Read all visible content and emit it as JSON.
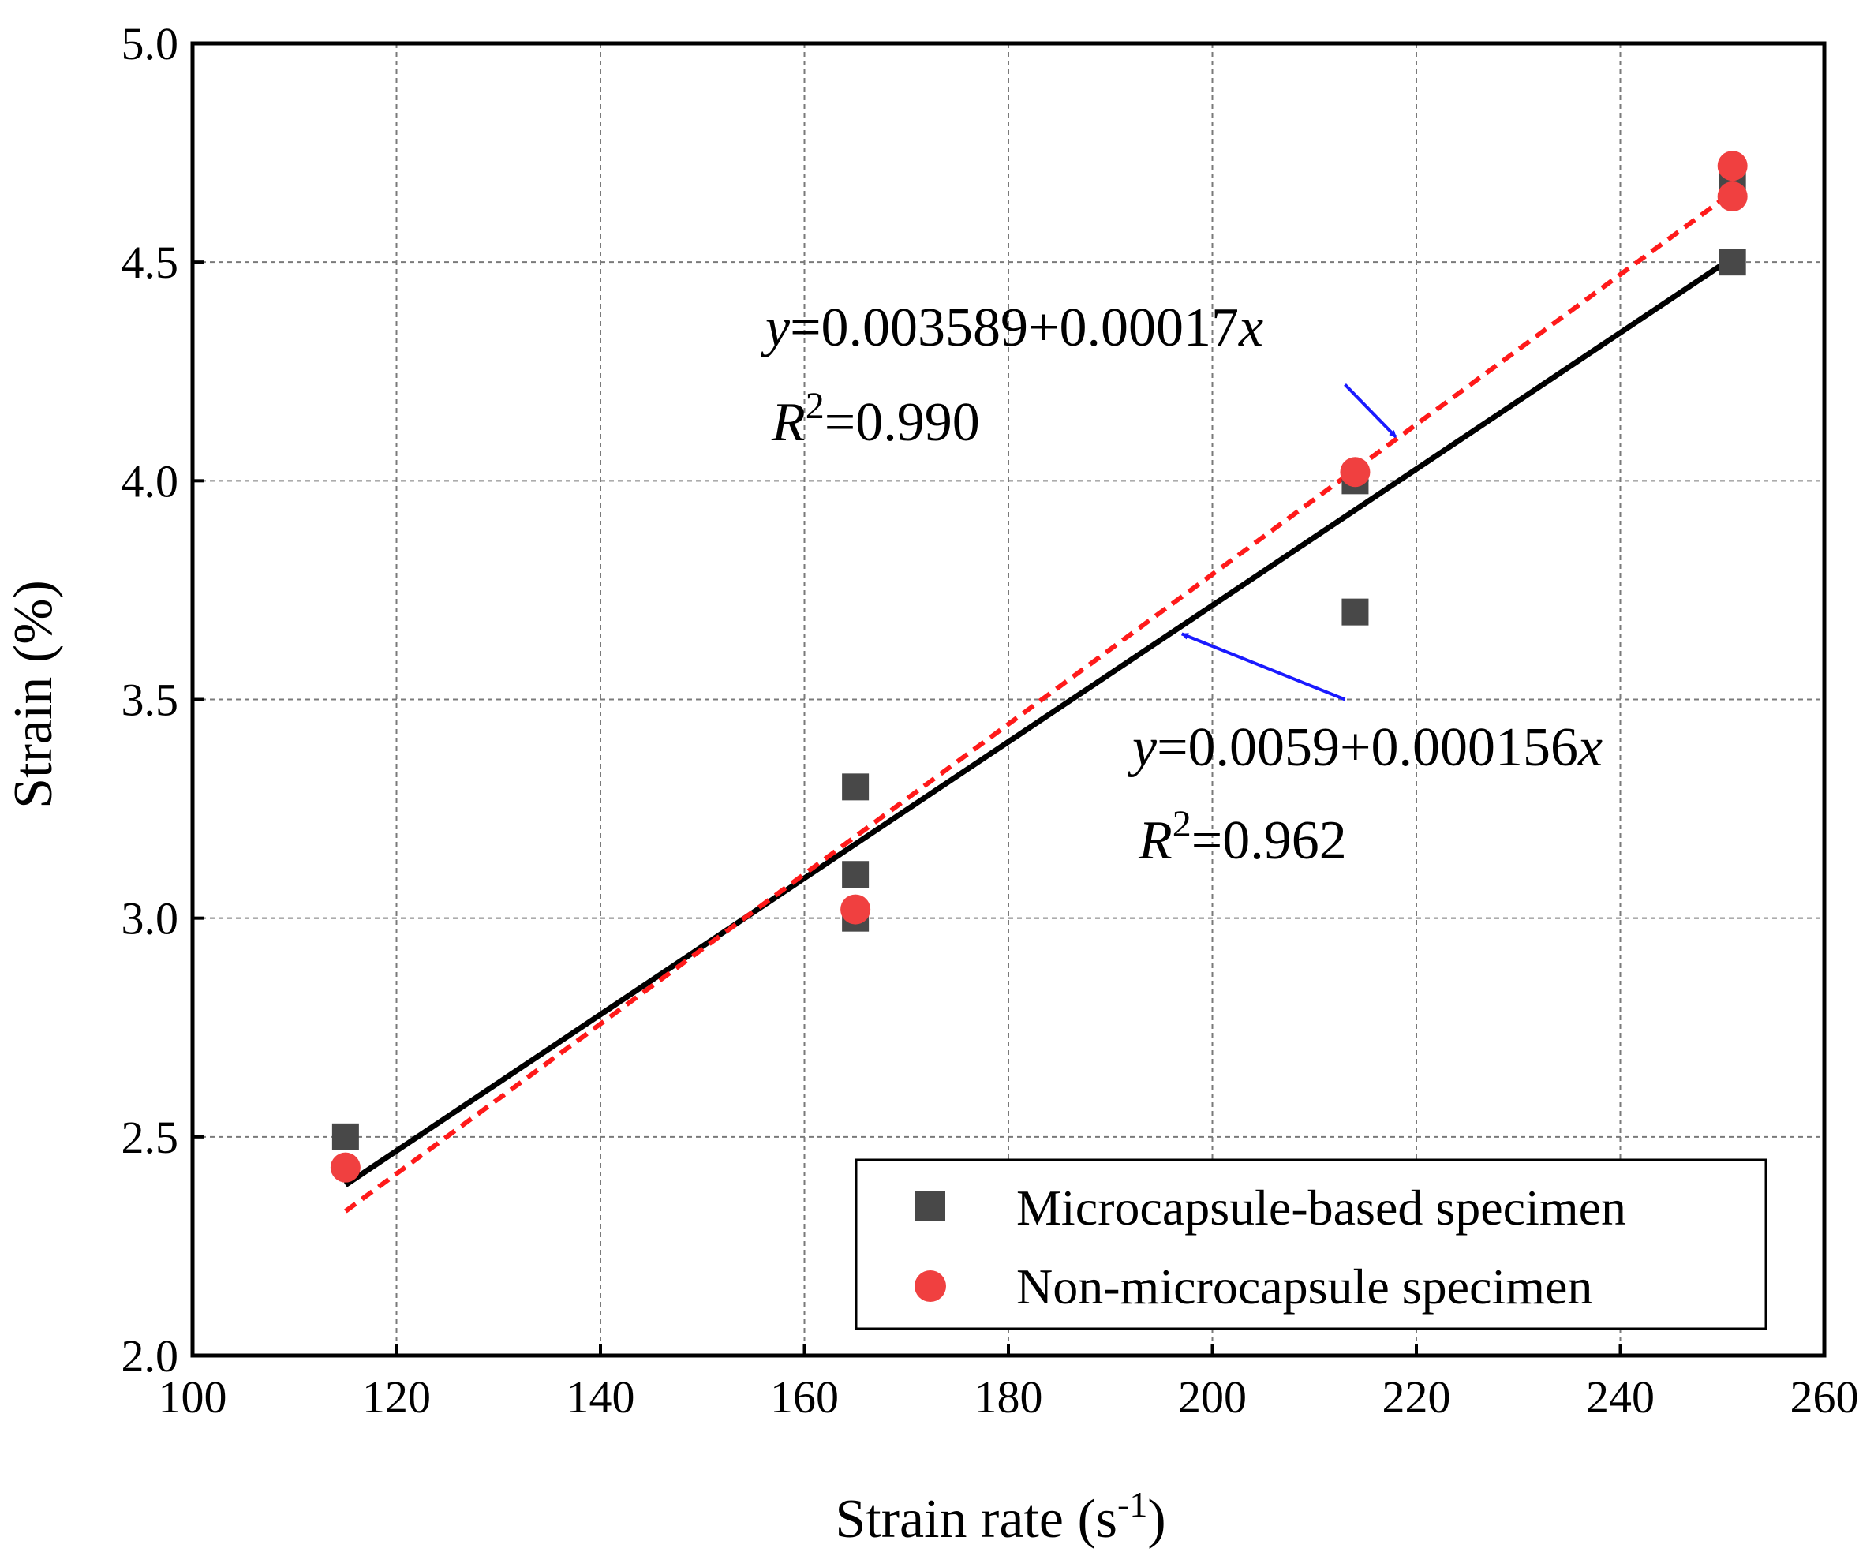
{
  "chart_data": {
    "type": "scatter",
    "xlabel": {
      "text": "Strain rate (s",
      "sup": "-1",
      "tail": ")"
    },
    "ylabel": "Strain (%)",
    "xlim": [
      100,
      260
    ],
    "ylim": [
      2.0,
      5.0
    ],
    "x_ticks": [
      "100",
      "120",
      "140",
      "160",
      "180",
      "200",
      "220",
      "240",
      "260"
    ],
    "y_ticks": [
      "2.0",
      "2.5",
      "3.0",
      "3.5",
      "4.0",
      "4.5",
      "5.0"
    ],
    "grid": true,
    "legend_position": "bottom-right",
    "colors": {
      "microcapsule": "#484848",
      "non_microcapsule": "#f04040",
      "fit_solid": "#000000",
      "fit_dashed": "#ff1a1a",
      "arrow": "#1a1aff"
    },
    "series": [
      {
        "name": "Microcapsule-based specimen",
        "marker": "square",
        "points": [
          [
            115,
            2.5
          ],
          [
            165,
            3.3
          ],
          [
            165,
            3.1
          ],
          [
            165,
            3.0
          ],
          [
            214,
            4.0
          ],
          [
            214,
            3.7
          ],
          [
            251,
            4.5
          ],
          [
            251,
            4.68
          ]
        ],
        "fit": {
          "style": "solid",
          "x_range": [
            115,
            251
          ],
          "y_range": [
            2.39,
            4.51
          ]
        }
      },
      {
        "name": "Non-microcapsule specimen",
        "marker": "circle",
        "points": [
          [
            115,
            2.43
          ],
          [
            165,
            3.02
          ],
          [
            214,
            4.02
          ],
          [
            251,
            4.65
          ],
          [
            251,
            4.72
          ]
        ],
        "fit": {
          "style": "dashed",
          "x_range": [
            115,
            251
          ],
          "y_range": [
            2.33,
            4.66
          ]
        }
      }
    ],
    "annotations": [
      {
        "var": "y",
        "eq": "=0.003589+0.00017",
        "xvar": "x",
        "r2_prefix": "R",
        "r2_sup": "2",
        "r2_value": "=0.990",
        "arrow_target": [
          218,
          4.1
        ],
        "arrow_from": [
          213,
          4.22
        ]
      },
      {
        "var": "y",
        "eq": "=0.0059+0.000156",
        "xvar": "x",
        "r2_prefix": "R",
        "r2_sup": "2",
        "r2_value": "=0.962",
        "arrow_target": [
          197,
          3.65
        ],
        "arrow_from": [
          213,
          3.5
        ]
      }
    ]
  }
}
